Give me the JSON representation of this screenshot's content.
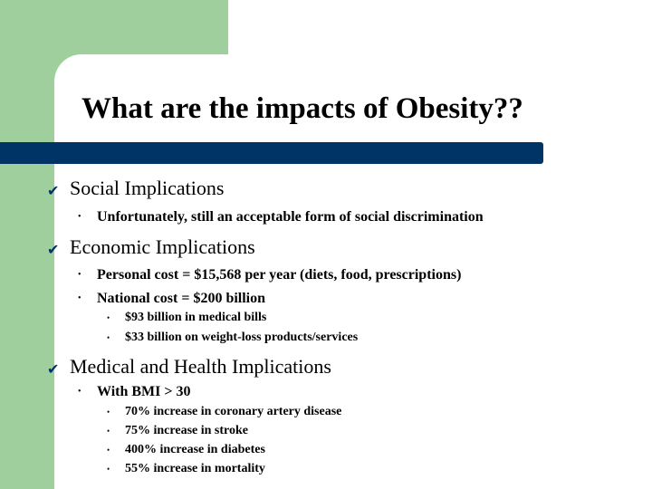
{
  "slide": {
    "title": "What are the impacts of Obesity??",
    "sections": [
      {
        "heading": "Social Implications",
        "items": [
          {
            "text": "Unfortunately, still an acceptable form of social discrimination"
          }
        ]
      },
      {
        "heading": "Economic Implications",
        "items": [
          {
            "text": "Personal cost  = $15,568 per year (diets, food, prescriptions)"
          },
          {
            "text": "National cost = $200 billion",
            "subitems": [
              "$93 billion in medical bills",
              "$33 billion on weight-loss products/services"
            ]
          }
        ]
      },
      {
        "heading": "Medical and Health Implications",
        "items": [
          {
            "text": "With BMI > 30",
            "subitems": [
              "70% increase in coronary artery disease",
              "75% increase in stroke",
              "400% increase in diabetes",
              "55% increase in mortality"
            ]
          }
        ]
      }
    ]
  },
  "bullets": {
    "level1": "v",
    "level2": "•",
    "level3": "•"
  },
  "colors": {
    "green_block": "#9fcf9d",
    "title_bar": "#003366",
    "background": "#ffffff"
  }
}
